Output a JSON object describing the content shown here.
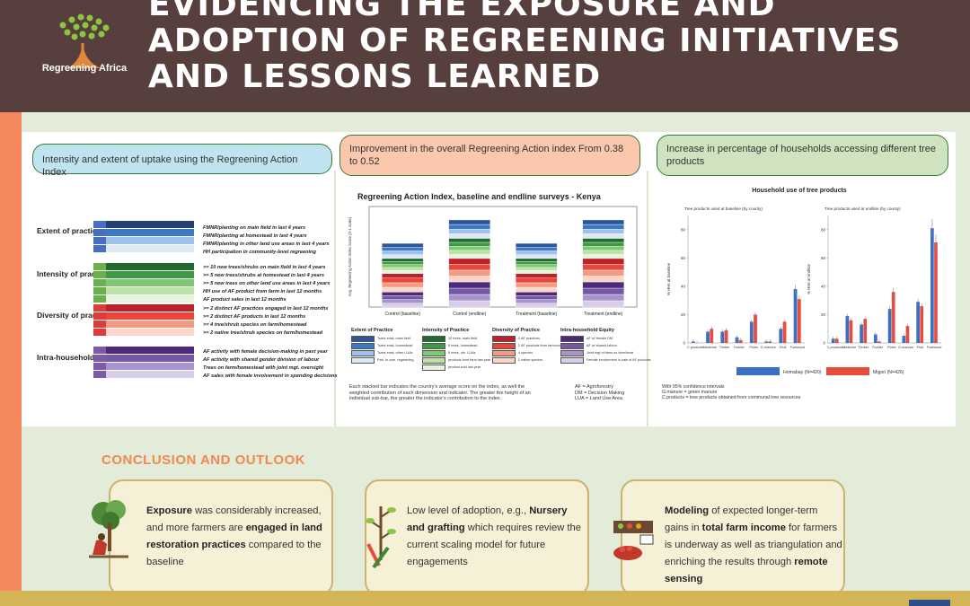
{
  "header": {
    "title_lines": [
      "EVIDENCING THE EXPOSURE AND",
      "ADOPTION OF REGREENING INITIATIVES",
      "AND LESSONS LEARNED"
    ],
    "logo_text": "Regreening Africa",
    "background_color": "#563f3c"
  },
  "panels": {
    "p1": {
      "heading": "Intensity and extent of uptake using the Regreening Action Index",
      "categories": [
        {
          "label": "Extent of practice",
          "color": "#4a6ebf",
          "indicators": [
            "FMNR/planting on main field in last 4 years",
            "FMNR/planting at homestead in last 4 years",
            "FMNR/planting in other land use areas in last 4 years",
            "HH participation in community-level regreening"
          ]
        },
        {
          "label": "Intensity of practice",
          "color": "#6ab04c",
          "indicators": [
            ">= 10 new trees/shrubs on main field in last 4 years",
            ">= 5 new trees/shrubs at homestead in last 4 years",
            ">= 5 new trees on other land use areas in last 4 years",
            "HH use of AF product from farm in last 12 months",
            "AF product sales in last 12 months"
          ]
        },
        {
          "label": "Diversity of practice",
          "color": "#e03b3b",
          "indicators": [
            ">= 2 distinct AF practices engaged in last 12 months",
            ">= 2 distinct AF products in last 12 months",
            ">= 4 tree/shrub species on farm/homestead",
            ">= 2 native tree/shrub species on farm/homestead"
          ]
        },
        {
          "label": "Intra-household equity",
          "color": "#7b5ba8",
          "indicators": [
            "AF activity with female decision-making in past year",
            "AF activity with shared gender division of labour",
            "Trees on farm/homestead with joint mgt. oversight",
            "AF sales with female involvement in spending decisions"
          ]
        }
      ]
    },
    "p2": {
      "heading": "Improvement in the overall Regreening Action index From 0.38 to 0.52",
      "note_left": "Each stacked bar indicates the country's average score on the index, as well the weighted contribution of each dimension and indicator. The greater the height of an individual sub-bar, the greater the indicator's contribution to the index.",
      "note_right": "AF = Agroforestry\nDM = Decision Making\nLUA = Land Use Area",
      "legend": [
        {
          "title": "Extent of Practice",
          "items": [
            "Trees exist, main field",
            "Trees exist, homestead",
            "Trees exist, other LUAs",
            "Part. in com. regreening"
          ]
        },
        {
          "title": "Intensity of Practice",
          "items": [
            "10 trees, main field",
            "5 trees, homestead",
            "5 trees, oth. LUAs",
            "products from farm last year",
            "product sold last year"
          ]
        },
        {
          "title": "Diversity of Practice",
          "items": [
            "2 AF practices",
            "2 AF products from farm/comm. for",
            "4 species",
            "2 native species"
          ]
        },
        {
          "title": "Intra-household Equity",
          "items": [
            "AF w/ female DM",
            "AF w/ shared labour",
            "Joint mgt of trees on farm/hmst",
            "Female involvement in sale of AF products"
          ]
        }
      ]
    },
    "p3": {
      "heading": "Increase in percentage of households accessing different tree products",
      "note": "With 95% confidence intervals\nG.manure = green manure\nC.products = tree products obtained from communal tree resources"
    }
  },
  "chart_data": [
    {
      "type": "bar",
      "title": "Regreening Action Index, baseline and endline surveys - Kenya",
      "ylabel": "Avg. Regreening Action Index Score (0-1 scale)",
      "categories": [
        "Control (baseline)",
        "Control (endline)",
        "Treatment (baseline)",
        "Treatment (endline)"
      ],
      "ylim": [
        0,
        0.6
      ],
      "series": [
        {
          "name": "Extent of Practice",
          "values": [
            0.09,
            0.11,
            0.09,
            0.11
          ]
        },
        {
          "name": "Intensity of Practice",
          "values": [
            0.09,
            0.12,
            0.09,
            0.12
          ]
        },
        {
          "name": "Diversity of Practice",
          "values": [
            0.11,
            0.14,
            0.11,
            0.14
          ]
        },
        {
          "name": "Intra-household Equity",
          "values": [
            0.09,
            0.15,
            0.09,
            0.15
          ]
        }
      ]
    },
    {
      "type": "bar",
      "title": "Household use of tree products",
      "subplots": [
        {
          "subtitle": "Tree products used at baseline (by county)",
          "ylabel": "% HHs at baseline"
        },
        {
          "subtitle": "Tree products used at endline (by county)",
          "ylabel": "% HHs at endline"
        }
      ],
      "categories": [
        "C.products",
        "Medicine",
        "Timber",
        "Fodder",
        "Poles",
        "G.manure",
        "Fruit",
        "Fuelwood"
      ],
      "ylim": [
        0,
        90
      ],
      "yticks": [
        0,
        20,
        40,
        60,
        80
      ],
      "series": [
        {
          "name": "Homabay (N=420)",
          "color": "#3b6fc4",
          "baseline": [
            1,
            8,
            8,
            4,
            15,
            1,
            10,
            38
          ],
          "endline": [
            3,
            19,
            13,
            6,
            24,
            5,
            29,
            81
          ]
        },
        {
          "name": "Migori (N=426)",
          "color": "#e74c3c",
          "baseline": [
            0,
            10,
            9,
            2,
            20,
            1,
            15,
            31
          ],
          "endline": [
            3,
            16,
            17,
            1,
            36,
            12,
            26,
            71
          ]
        }
      ]
    }
  ],
  "conclusion": {
    "title": "CONCLUSION AND OUTLOOK",
    "cards": [
      {
        "bold1": "Exposure",
        "text1": " was considerably increased, and more farmers are ",
        "bold2": "engaged in land restoration practices",
        "text2": " compared to the baseline"
      },
      {
        "bold1": "",
        "text1": "Low level of adoption, e.g., ",
        "bold2": "Nursery and grafting",
        "text2": " which requires review the current scaling model for future engagements"
      },
      {
        "bold1": "Modeling",
        "text1": " of expected longer-term gains in ",
        "bold2": "total farm income",
        "text2": " for farmers is  underway as well as triangulation and enriching the results through ",
        "bold3": "remote sensing"
      }
    ]
  }
}
